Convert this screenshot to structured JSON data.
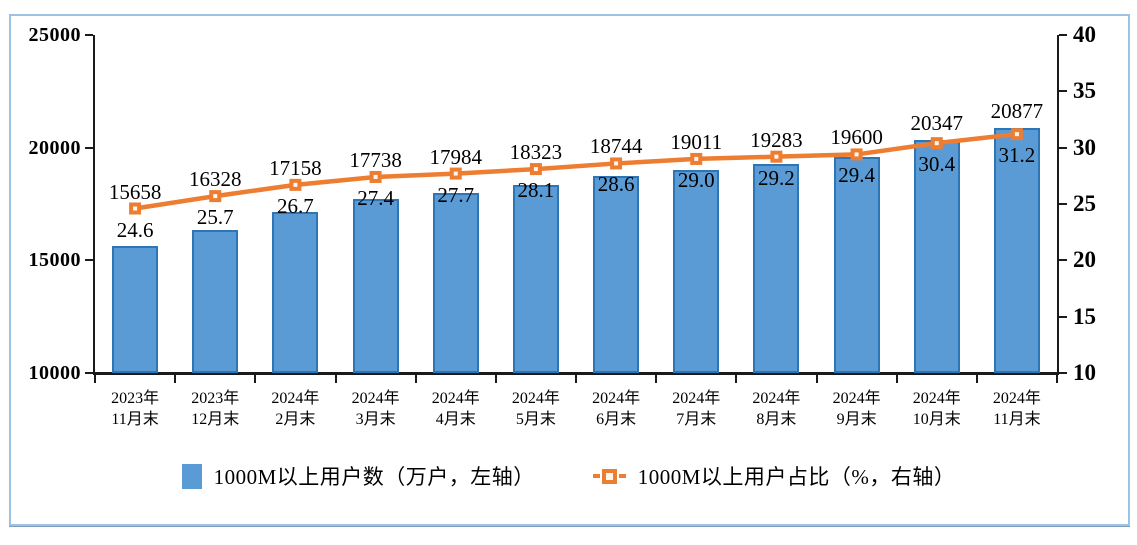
{
  "chart_data": {
    "type": "bar",
    "combo": "bar+line dual axis",
    "title": "",
    "categories": [
      [
        "2023年",
        "11月末"
      ],
      [
        "2023年",
        "12月末"
      ],
      [
        "2024年",
        "2月末"
      ],
      [
        "2024年",
        "3月末"
      ],
      [
        "2024年",
        "4月末"
      ],
      [
        "2024年",
        "5月末"
      ],
      [
        "2024年",
        "6月末"
      ],
      [
        "2024年",
        "7月末"
      ],
      [
        "2024年",
        "8月末"
      ],
      [
        "2024年",
        "9月末"
      ],
      [
        "2024年",
        "10月末"
      ],
      [
        "2024年",
        "11月末"
      ]
    ],
    "series": [
      {
        "name": "1000M以上用户数（万户，左轴）",
        "type": "bar",
        "axis": "left",
        "values": [
          15658,
          16328,
          17158,
          17738,
          17984,
          18323,
          18744,
          19011,
          19283,
          19600,
          20347,
          20877
        ]
      },
      {
        "name": "1000M以上用户占比（%，右轴）",
        "type": "line",
        "axis": "right",
        "values": [
          24.6,
          25.7,
          26.7,
          27.4,
          27.7,
          28.1,
          28.6,
          29.0,
          29.2,
          29.4,
          30.4,
          31.2
        ]
      }
    ],
    "left_axis": {
      "min": 10000,
      "max": 25000,
      "tick_step": 5000,
      "ticks": [
        "25000",
        "20000",
        "15000",
        "10000"
      ]
    },
    "right_axis": {
      "min": 10,
      "max": 40,
      "tick_step": 5,
      "ticks": [
        "40",
        "35",
        "30",
        "25",
        "20",
        "15",
        "10"
      ]
    },
    "legend_position": "bottom",
    "grid": false,
    "colors": {
      "bar_fill": "#5B9BD5",
      "bar_border": "#2E75B6",
      "line": "#ED7D31",
      "marker_center": "#FDF5EF",
      "axis": "#1A1A1A",
      "frame_border": "#9CC2E5"
    }
  }
}
